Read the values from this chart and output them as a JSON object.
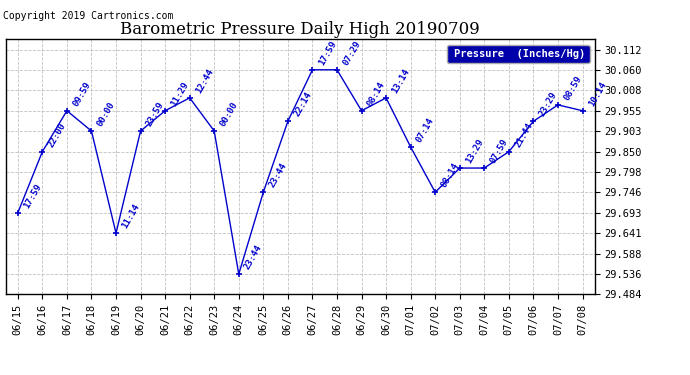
{
  "title": "Barometric Pressure Daily High 20190709",
  "copyright": "Copyright 2019 Cartronics.com",
  "legend_label": "Pressure  (Inches/Hg)",
  "dates": [
    "06/15",
    "06/16",
    "06/17",
    "06/18",
    "06/19",
    "06/20",
    "06/21",
    "06/22",
    "06/23",
    "06/24",
    "06/25",
    "06/26",
    "06/27",
    "06/28",
    "06/29",
    "06/30",
    "07/01",
    "07/02",
    "07/03",
    "07/04",
    "07/05",
    "07/06",
    "07/07",
    "07/08"
  ],
  "values": [
    29.693,
    29.85,
    29.955,
    29.903,
    29.641,
    29.903,
    29.955,
    29.988,
    29.903,
    29.536,
    29.746,
    29.928,
    30.06,
    30.06,
    29.955,
    29.988,
    29.862,
    29.746,
    29.808,
    29.808,
    29.85,
    29.928,
    29.97,
    29.955
  ],
  "time_labels": [
    "17:59",
    "22:00",
    "09:59",
    "00:00",
    "11:14",
    "23:59",
    "11:29",
    "12:44",
    "00:00",
    "23:44",
    "23:44",
    "22:14",
    "17:59",
    "07:29",
    "08:14",
    "13:14",
    "07:14",
    "08:14",
    "13:29",
    "07:59",
    "21:44",
    "23:29",
    "08:59",
    "10:14"
  ],
  "ylim_min": 29.484,
  "ylim_max": 30.138,
  "yticks": [
    29.484,
    29.536,
    29.588,
    29.641,
    29.693,
    29.746,
    29.798,
    29.85,
    29.903,
    29.955,
    30.008,
    30.06,
    30.112
  ],
  "line_color": "#0000cc",
  "marker_color": "#000000",
  "bg_color": "#ffffff",
  "grid_color": "#bbbbbb",
  "title_fontsize": 12,
  "label_fontsize": 6.5,
  "tick_fontsize": 7.5,
  "copyright_fontsize": 7
}
